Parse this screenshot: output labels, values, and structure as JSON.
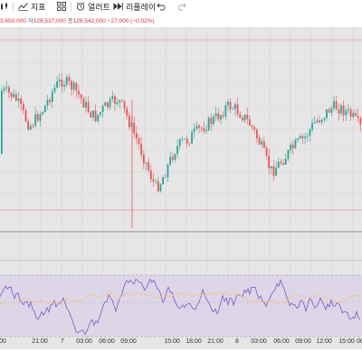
{
  "toolbar": {
    "indicators_label": "지표",
    "alert_label": "얼러트",
    "replay_label": "리플레이"
  },
  "legend": {
    "open_value": "3,650,000",
    "close_label": "저",
    "close_value": "128,537,000",
    "last_label": "종",
    "last_value": "128,542,000",
    "change": "−27,000 (−0.02%)"
  },
  "colors": {
    "up": "#26a69a",
    "down": "#ef5350",
    "rsi_line": "#7e57c2",
    "rsi_band": "#d1c4e9",
    "background": "#e6e6e6"
  },
  "xaxis": {
    "ticks": [
      "00",
      "21:00",
      "7",
      "03:00",
      "06:00",
      "09:00",
      "15:00",
      "18:00",
      "21:00",
      "8",
      "03:00",
      "06:00",
      "09:00",
      "12:00",
      "15:00",
      "00"
    ]
  },
  "chart_data": {
    "type": "candlestick",
    "title": "",
    "xlabel": "",
    "ylabel": "",
    "price_trend": [
      140,
      142,
      145,
      150,
      160,
      172,
      182,
      176,
      168,
      162,
      150,
      140,
      132,
      128,
      131,
      135,
      141,
      149,
      158,
      166,
      172,
      167,
      160,
      157,
      153,
      150,
      160,
      172,
      185,
      198,
      212,
      226,
      241,
      255,
      250,
      238,
      225,
      212,
      205,
      200,
      199,
      192,
      188,
      184,
      180,
      176,
      172,
      168,
      160,
      158,
      161,
      166,
      171,
      178,
      186,
      198,
      210,
      226,
      236,
      230,
      224,
      218,
      211,
      205,
      200,
      196,
      188,
      179,
      174,
      170,
      164,
      160,
      159,
      162,
      165,
      170,
      176,
      184
    ],
    "rsi_band": [
      30,
      70
    ]
  }
}
